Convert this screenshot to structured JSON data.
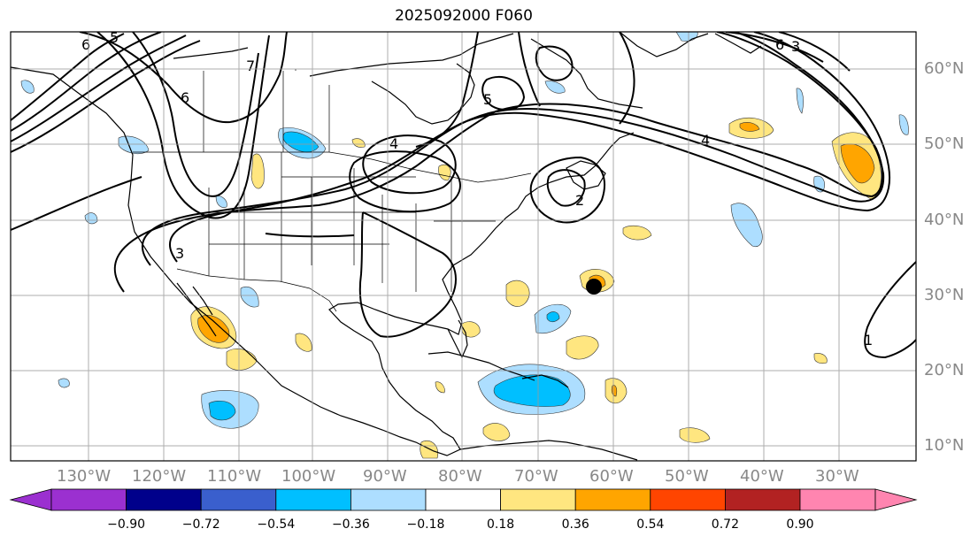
{
  "title": "2025092000 F060",
  "lat_labels": [
    "60°N",
    "50°N",
    "40°N",
    "30°N",
    "20°N",
    "10°N"
  ],
  "lon_labels": [
    "130°W",
    "120°W",
    "110°W",
    "100°W",
    "90°W",
    "80°W",
    "70°W",
    "60°W",
    "50°W",
    "40°W",
    "30°W"
  ],
  "contour_labels": [
    "5",
    "6",
    "6",
    "7",
    "3",
    "4",
    "4",
    "5",
    "2",
    "6",
    "3",
    "1"
  ],
  "colorbar": {
    "colors": [
      "#9b30d0",
      "#00008b",
      "#3a5fcd",
      "#00bfff",
      "#addeff",
      "#ffffff",
      "#ffe680",
      "#ffa500",
      "#ff4500",
      "#b22222",
      "#ff85b0"
    ],
    "tick_labels": [
      "−0.90",
      "−0.72",
      "−0.54",
      "−0.36",
      "−0.18",
      "0.18",
      "0.36",
      "0.54",
      "0.72",
      "0.90"
    ]
  },
  "colors": {
    "land_outline": "#000000",
    "grid": "#888888",
    "label_text": "#888888"
  },
  "marker": {
    "type": "filled-circle",
    "color": "#000000"
  }
}
